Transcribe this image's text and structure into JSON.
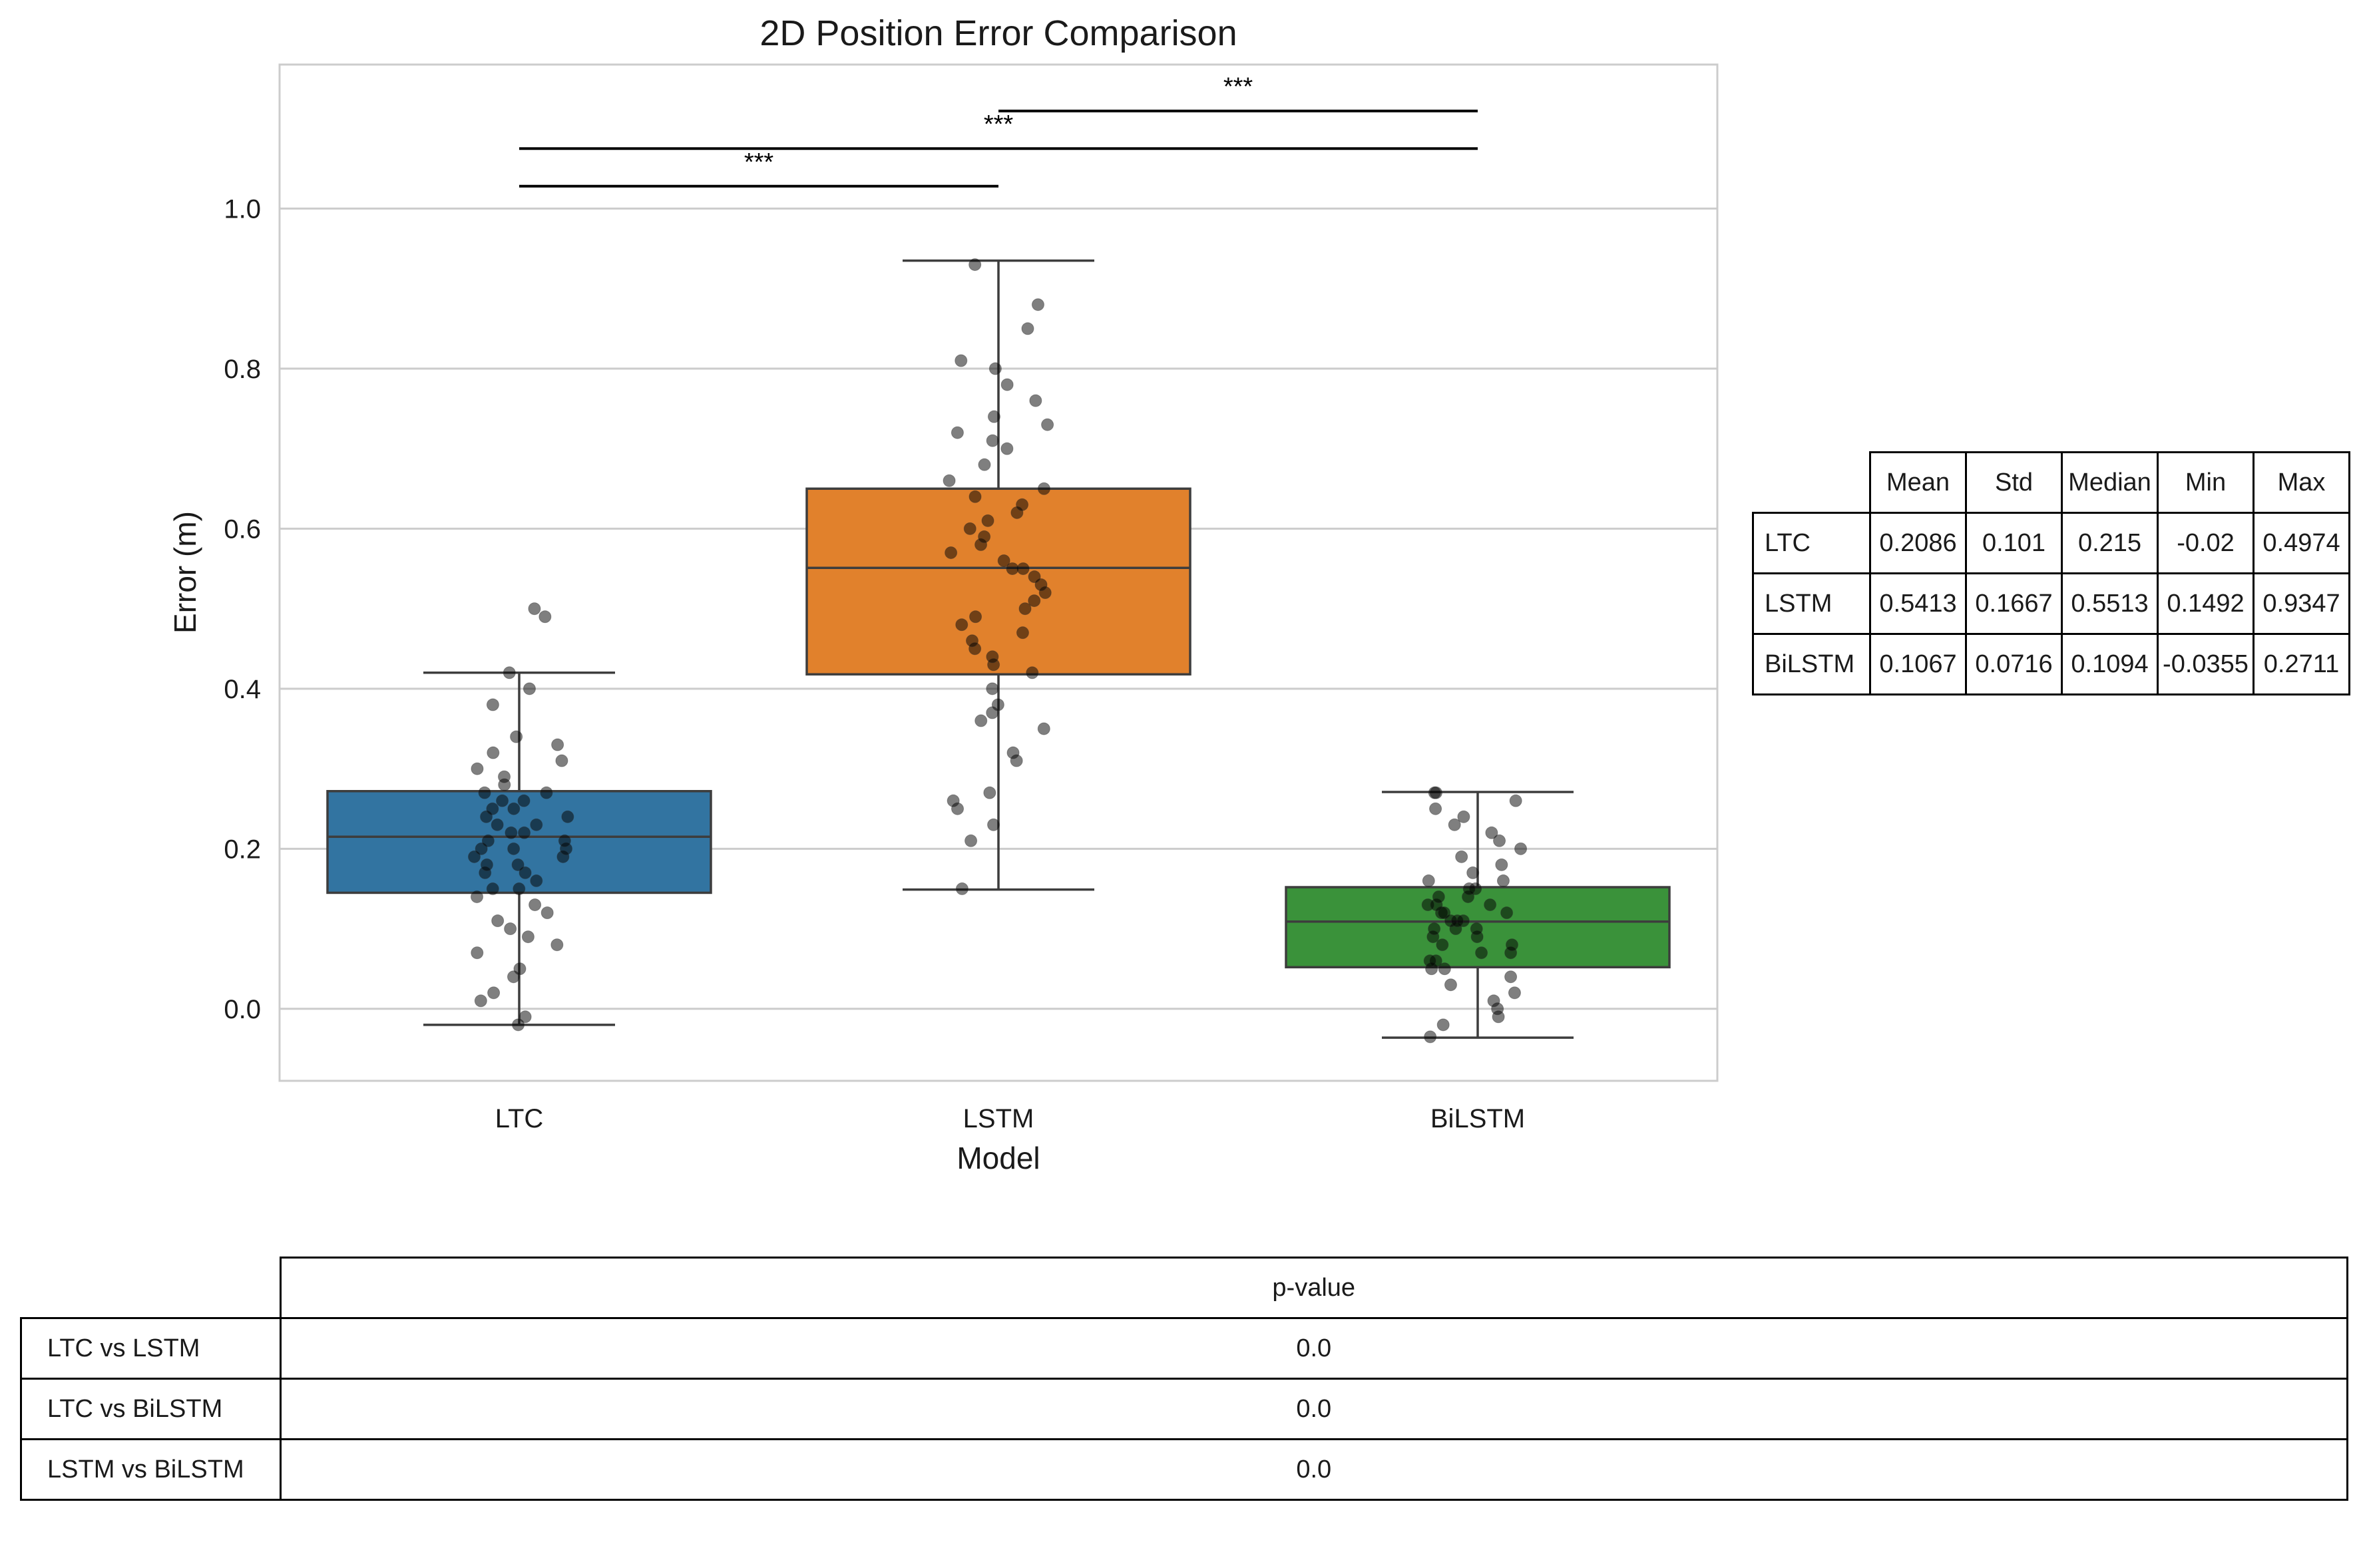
{
  "chart_data": {
    "type": "box",
    "title": "2D Position Error Comparison",
    "xlabel": "Model",
    "ylabel": "Error (m)",
    "ylim": [
      -0.09,
      1.18
    ],
    "yticks": [
      0.0,
      0.2,
      0.4,
      0.6,
      0.8,
      1.0
    ],
    "ytick_labels": [
      "0.0",
      "0.2",
      "0.4",
      "0.6",
      "0.8",
      "1.0"
    ],
    "grid": true,
    "categories": [
      "LTC",
      "LSTM",
      "BiLSTM"
    ],
    "colors": [
      "#3274a1",
      "#e1812c",
      "#3a923a"
    ],
    "boxes": [
      {
        "name": "LTC",
        "whisker_low": -0.02,
        "q1": 0.145,
        "median": 0.215,
        "q3": 0.272,
        "whisker_high": 0.42
      },
      {
        "name": "LSTM",
        "whisker_low": 0.149,
        "q1": 0.418,
        "median": 0.551,
        "q3": 0.65,
        "whisker_high": 0.935
      },
      {
        "name": "BiLSTM",
        "whisker_low": -0.036,
        "q1": 0.052,
        "median": 0.109,
        "q3": 0.152,
        "whisker_high": 0.271
      }
    ],
    "points": [
      [
        -0.02,
        -0.01,
        0.01,
        0.02,
        0.04,
        0.05,
        0.07,
        0.08,
        0.09,
        0.1,
        0.11,
        0.12,
        0.13,
        0.14,
        0.15,
        0.15,
        0.16,
        0.17,
        0.17,
        0.18,
        0.18,
        0.19,
        0.19,
        0.2,
        0.2,
        0.2,
        0.21,
        0.21,
        0.22,
        0.22,
        0.23,
        0.23,
        0.24,
        0.24,
        0.25,
        0.25,
        0.26,
        0.26,
        0.27,
        0.27,
        0.28,
        0.29,
        0.3,
        0.31,
        0.32,
        0.33,
        0.34,
        0.38,
        0.4,
        0.42,
        0.49,
        0.5
      ],
      [
        0.15,
        0.21,
        0.23,
        0.25,
        0.26,
        0.27,
        0.31,
        0.32,
        0.35,
        0.36,
        0.37,
        0.38,
        0.4,
        0.42,
        0.43,
        0.44,
        0.45,
        0.46,
        0.47,
        0.48,
        0.49,
        0.5,
        0.51,
        0.52,
        0.53,
        0.54,
        0.55,
        0.55,
        0.56,
        0.57,
        0.58,
        0.59,
        0.6,
        0.61,
        0.62,
        0.63,
        0.64,
        0.65,
        0.66,
        0.68,
        0.7,
        0.71,
        0.72,
        0.73,
        0.74,
        0.76,
        0.78,
        0.8,
        0.81,
        0.85,
        0.88,
        0.93
      ],
      [
        -0.035,
        -0.02,
        -0.01,
        0.0,
        0.01,
        0.02,
        0.03,
        0.04,
        0.05,
        0.05,
        0.06,
        0.06,
        0.07,
        0.07,
        0.08,
        0.08,
        0.09,
        0.09,
        0.1,
        0.1,
        0.1,
        0.11,
        0.11,
        0.11,
        0.12,
        0.12,
        0.12,
        0.13,
        0.13,
        0.13,
        0.14,
        0.14,
        0.15,
        0.15,
        0.16,
        0.16,
        0.17,
        0.18,
        0.19,
        0.2,
        0.21,
        0.22,
        0.23,
        0.24,
        0.25,
        0.26,
        0.27,
        0.27
      ]
    ],
    "significance": [
      {
        "from": 0,
        "to": 1,
        "y": 1.028,
        "label": "***"
      },
      {
        "from": 0,
        "to": 2,
        "y": 1.075,
        "label": "***"
      },
      {
        "from": 1,
        "to": 2,
        "y": 1.122,
        "label": "***"
      }
    ]
  },
  "stats_table": {
    "columns": [
      "Mean",
      "Std",
      "Median",
      "Min",
      "Max"
    ],
    "rows": [
      {
        "label": "LTC",
        "values": [
          "0.2086",
          "0.101",
          "0.215",
          "-0.02",
          "0.4974"
        ]
      },
      {
        "label": "LSTM",
        "values": [
          "0.5413",
          "0.1667",
          "0.5513",
          "0.1492",
          "0.9347"
        ]
      },
      {
        "label": "BiLSTM",
        "values": [
          "0.1067",
          "0.0716",
          "0.1094",
          "-0.0355",
          "0.2711"
        ]
      }
    ]
  },
  "pvalue_table": {
    "column": "p-value",
    "rows": [
      {
        "label": "LTC vs LSTM",
        "value": "0.0"
      },
      {
        "label": "LTC vs BiLSTM",
        "value": "0.0"
      },
      {
        "label": "LSTM vs BiLSTM",
        "value": "0.0"
      }
    ]
  }
}
